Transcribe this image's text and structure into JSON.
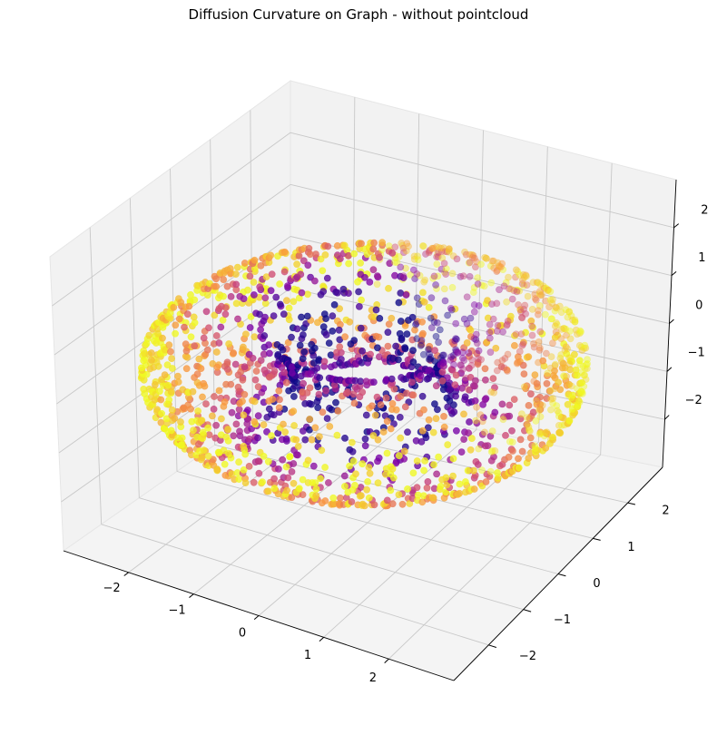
{
  "chart_data": {
    "type": "scatter",
    "projection": "3d",
    "title": "Diffusion Curvature on Graph - without pointcloud",
    "xlabel": "",
    "ylabel": "",
    "zlabel": "",
    "shape": "torus",
    "torus": {
      "major_radius": 2,
      "minor_radius": 1,
      "n_points": 2000
    },
    "xlim": [
      -3,
      3
    ],
    "ylim": [
      -3,
      3
    ],
    "zlim": [
      -3,
      3
    ],
    "x_ticks": [
      -2,
      -1,
      0,
      1,
      2
    ],
    "y_ticks": [
      -2,
      -1,
      0,
      1,
      2
    ],
    "z_ticks": [
      -2,
      -1,
      0,
      1,
      2
    ],
    "x_tick_labels": [
      "−2",
      "−1",
      "0",
      "1",
      "2"
    ],
    "y_tick_labels": [
      "−2",
      "−1",
      "0",
      "1",
      "2"
    ],
    "z_tick_labels": [
      "−2",
      "−1",
      "0",
      "1",
      "2"
    ],
    "colormap": "plasma",
    "color_encoding": "diffusion curvature: high (yellow) on outer rim, low (purple) on inner rim",
    "grid": true,
    "pane_color": "#f2f2f2",
    "legend": "none"
  }
}
